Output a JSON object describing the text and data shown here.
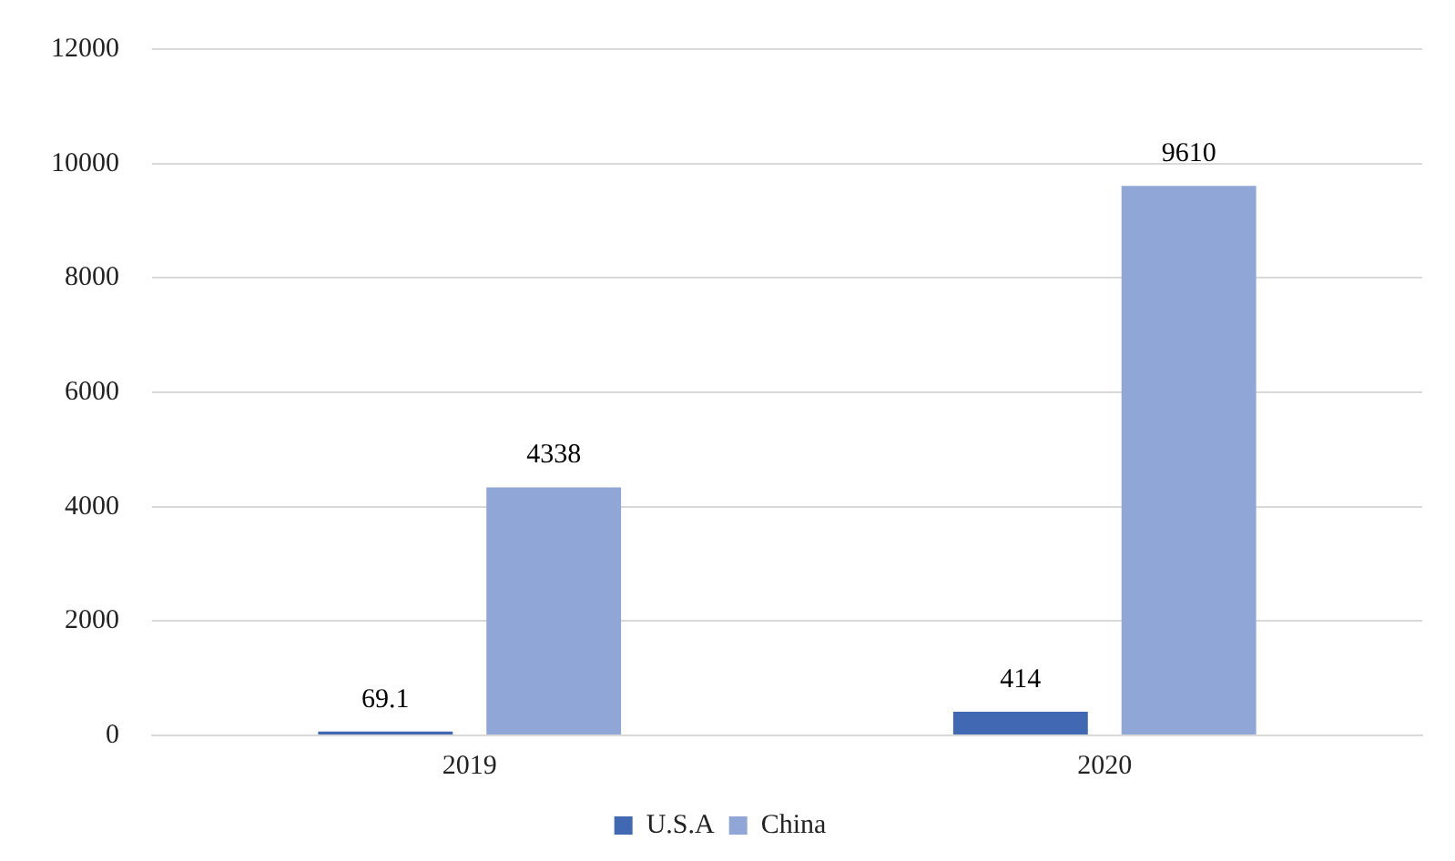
{
  "chart_data": {
    "type": "bar",
    "categories": [
      "2019",
      "2020"
    ],
    "series": [
      {
        "name": "U.S.A",
        "color": "#4169b3",
        "values": [
          69.1,
          414
        ]
      },
      {
        "name": "China",
        "color": "#8fa6d6",
        "values": [
          4338,
          9610
        ]
      }
    ],
    "ylim": [
      0,
      12000
    ],
    "yticks": [
      0,
      2000,
      4000,
      6000,
      8000,
      10000,
      12000
    ],
    "grid": "y",
    "legend": "bottom",
    "data_labels": true
  }
}
